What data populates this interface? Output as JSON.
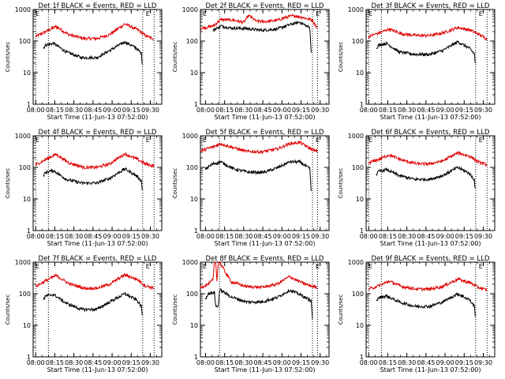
{
  "colors": {
    "events": "#000000",
    "lld": "#e00000",
    "axis": "#000000"
  },
  "shared_axis": {
    "ylabel": "Counts/sec",
    "xlabel": "Start Time (11-Jun-13 07:52:00)",
    "y_scale": "log",
    "ylim": [
      1,
      1000
    ],
    "y_tick_labels": [
      "1",
      "10",
      "100",
      "1000"
    ],
    "marker_label": "E"
  },
  "chart_data": [
    {
      "type": "line",
      "title": "Det 1f BLACK = Events, RED = LLD",
      "x_tick_labels": [
        "08:00",
        "08:15",
        "08:30",
        "08:45",
        "09:00",
        "09:15",
        "09:30"
      ],
      "xlim_min": [
        -2,
        99
      ],
      "data_min": [
        0,
        93
      ],
      "dashed_x_min": [
        10,
        84
      ],
      "series": [
        {
          "color": "red",
          "x_min": [
            0,
            8,
            16,
            26,
            38,
            48,
            58,
            70,
            80,
            86,
            93
          ],
          "values": [
            140,
            200,
            290,
            160,
            120,
            120,
            160,
            350,
            230,
            150,
            115
          ]
        },
        {
          "color": "black",
          "x_min": [
            6,
            8,
            14,
            24,
            36,
            48,
            58,
            70,
            79,
            83,
            84
          ],
          "values": [
            60,
            75,
            85,
            45,
            30,
            30,
            50,
            95,
            60,
            40,
            15
          ]
        }
      ]
    },
    {
      "type": "line",
      "title": "Det 2f BLACK = Events, RED = LLD",
      "x_tick_labels": [
        "08:00",
        "08:15",
        "08:30",
        "08:45",
        "09:00",
        "09:15",
        "09:30"
      ],
      "xlim_min": [
        -4,
        97
      ],
      "data_min": [
        -4,
        88
      ],
      "dashed_x_min": [
        11,
        84
      ],
      "series": [
        {
          "color": "red",
          "x_min": [
            -4,
            6,
            12,
            22,
            30,
            34,
            40,
            48,
            56,
            64,
            70,
            78,
            84,
            88
          ],
          "values": [
            250,
            300,
            480,
            460,
            390,
            650,
            420,
            420,
            450,
            580,
            640,
            540,
            460,
            250
          ]
        },
        {
          "color": "black",
          "x_min": [
            6,
            12,
            20,
            32,
            44,
            56,
            66,
            74,
            82,
            83
          ],
          "values": [
            220,
            300,
            260,
            250,
            220,
            240,
            330,
            400,
            260,
            40
          ]
        }
      ]
    },
    {
      "type": "line",
      "title": "Det 3f BLACK = Events, RED = LLD",
      "x_tick_labels": [
        "08:00",
        "08:15",
        "08:30",
        "08:45",
        "09:00",
        "09:15",
        "09:30"
      ],
      "xlim_min": [
        -2,
        99
      ],
      "data_min": [
        0,
        93
      ],
      "dashed_x_min": [
        10,
        84
      ],
      "series": [
        {
          "color": "red",
          "x_min": [
            0,
            8,
            16,
            26,
            38,
            48,
            58,
            70,
            80,
            86,
            93
          ],
          "values": [
            140,
            180,
            240,
            170,
            150,
            150,
            180,
            270,
            220,
            170,
            115
          ]
        },
        {
          "color": "black",
          "x_min": [
            6,
            8,
            14,
            24,
            36,
            48,
            58,
            70,
            79,
            83,
            84
          ],
          "values": [
            60,
            75,
            85,
            45,
            38,
            38,
            50,
            95,
            60,
            40,
            15
          ]
        }
      ]
    },
    {
      "type": "line",
      "title": "Det 4f BLACK = Events, RED = LLD",
      "x_tick_labels": [
        "08:00",
        "08:15",
        "08:30",
        "08:45",
        "09:00",
        "09:15",
        "09:30"
      ],
      "xlim_min": [
        -2,
        99
      ],
      "data_min": [
        0,
        93
      ],
      "dashed_x_min": [
        10,
        84
      ],
      "series": [
        {
          "color": "red",
          "x_min": [
            0,
            8,
            16,
            26,
            38,
            48,
            58,
            70,
            80,
            86,
            93
          ],
          "values": [
            120,
            180,
            260,
            140,
            100,
            100,
            130,
            270,
            180,
            130,
            110
          ]
        },
        {
          "color": "black",
          "x_min": [
            6,
            8,
            14,
            24,
            36,
            48,
            58,
            70,
            79,
            83,
            84
          ],
          "values": [
            55,
            70,
            80,
            42,
            32,
            32,
            45,
            90,
            55,
            38,
            15
          ]
        }
      ]
    },
    {
      "type": "line",
      "title": "Det 5f BLACK = Events, RED = LLD",
      "x_tick_labels": [
        "08:00",
        "08:15",
        "08:30",
        "08:45",
        "09:00",
        "09:15",
        "09:30"
      ],
      "xlim_min": [
        -4,
        97
      ],
      "data_min": [
        -4,
        88
      ],
      "dashed_x_min": [
        11,
        84
      ],
      "series": [
        {
          "color": "red",
          "x_min": [
            -4,
            6,
            12,
            22,
            32,
            44,
            56,
            66,
            74,
            82,
            88
          ],
          "values": [
            330,
            450,
            560,
            420,
            320,
            310,
            380,
            560,
            620,
            400,
            310
          ]
        },
        {
          "color": "black",
          "x_min": [
            0,
            6,
            12,
            22,
            34,
            46,
            56,
            66,
            74,
            82,
            83
          ],
          "values": [
            90,
            130,
            150,
            90,
            70,
            70,
            95,
            150,
            150,
            90,
            15
          ]
        }
      ]
    },
    {
      "type": "line",
      "title": "Det 6f BLACK = Events, RED = LLD",
      "x_tick_labels": [
        "08:00",
        "08:15",
        "08:30",
        "08:45",
        "09:00",
        "09:15",
        "09:30"
      ],
      "xlim_min": [
        -2,
        99
      ],
      "data_min": [
        0,
        93
      ],
      "dashed_x_min": [
        10,
        84
      ],
      "series": [
        {
          "color": "red",
          "x_min": [
            0,
            8,
            16,
            26,
            38,
            48,
            58,
            70,
            80,
            86,
            93
          ],
          "values": [
            140,
            180,
            250,
            170,
            130,
            130,
            160,
            290,
            220,
            150,
            120
          ]
        },
        {
          "color": "black",
          "x_min": [
            6,
            8,
            14,
            24,
            36,
            48,
            58,
            70,
            79,
            83,
            84
          ],
          "values": [
            60,
            75,
            85,
            55,
            42,
            42,
            55,
            100,
            65,
            40,
            15
          ]
        }
      ]
    },
    {
      "type": "line",
      "title": "Det 7f BLACK = Events, RED = LLD",
      "x_tick_labels": [
        "08:00",
        "08:15",
        "08:30",
        "08:45",
        "09:00",
        "09:15",
        "09:30"
      ],
      "xlim_min": [
        -2,
        99
      ],
      "data_min": [
        0,
        93
      ],
      "dashed_x_min": [
        10,
        84
      ],
      "series": [
        {
          "color": "red",
          "x_min": [
            0,
            8,
            16,
            26,
            38,
            48,
            58,
            70,
            80,
            86,
            93
          ],
          "values": [
            170,
            260,
            380,
            210,
            150,
            150,
            200,
            400,
            280,
            180,
            150
          ]
        },
        {
          "color": "black",
          "x_min": [
            6,
            8,
            14,
            24,
            36,
            48,
            58,
            70,
            79,
            83,
            84
          ],
          "values": [
            65,
            85,
            95,
            50,
            32,
            32,
            55,
            100,
            65,
            40,
            15
          ]
        }
      ]
    },
    {
      "type": "line",
      "title": "Det 8f BLACK = Events, RED = LLD",
      "x_tick_labels": [
        "08:00",
        "08:15",
        "08:30",
        "08:45",
        "09:00",
        "09:15",
        "09:30"
      ],
      "xlim_min": [
        -4,
        97
      ],
      "data_min": [
        -4,
        88
      ],
      "dashed_x_min": [
        11,
        84
      ],
      "series": [
        {
          "color": "red",
          "x_min": [
            -4,
            2,
            6,
            7,
            8,
            9,
            10,
            11,
            20,
            32,
            44,
            56,
            66,
            74,
            82,
            88
          ],
          "values": [
            160,
            200,
            280,
            1000,
            1000,
            260,
            1000,
            1000,
            240,
            170,
            160,
            200,
            350,
            240,
            180,
            160
          ]
        },
        {
          "color": "black",
          "x_min": [
            0,
            2,
            7,
            8,
            10,
            11,
            12,
            20,
            32,
            44,
            56,
            66,
            74,
            83,
            84
          ],
          "values": [
            70,
            100,
            110,
            40,
            40,
            120,
            130,
            80,
            55,
            55,
            75,
            130,
            95,
            60,
            15
          ]
        }
      ]
    },
    {
      "type": "line",
      "title": "Det 9f BLACK = Events, RED = LLD",
      "x_tick_labels": [
        "08:00",
        "08:15",
        "08:30",
        "08:45",
        "09:00",
        "09:15",
        "09:30"
      ],
      "xlim_min": [
        -2,
        99
      ],
      "data_min": [
        0,
        93
      ],
      "dashed_x_min": [
        10,
        84
      ],
      "series": [
        {
          "color": "red",
          "x_min": [
            0,
            8,
            16,
            26,
            38,
            48,
            58,
            70,
            80,
            86,
            93
          ],
          "values": [
            140,
            180,
            250,
            170,
            140,
            140,
            170,
            290,
            220,
            160,
            130
          ]
        },
        {
          "color": "black",
          "x_min": [
            6,
            8,
            14,
            24,
            36,
            48,
            58,
            70,
            79,
            83,
            84
          ],
          "values": [
            60,
            75,
            85,
            55,
            40,
            40,
            55,
            100,
            65,
            40,
            15
          ]
        }
      ]
    }
  ]
}
